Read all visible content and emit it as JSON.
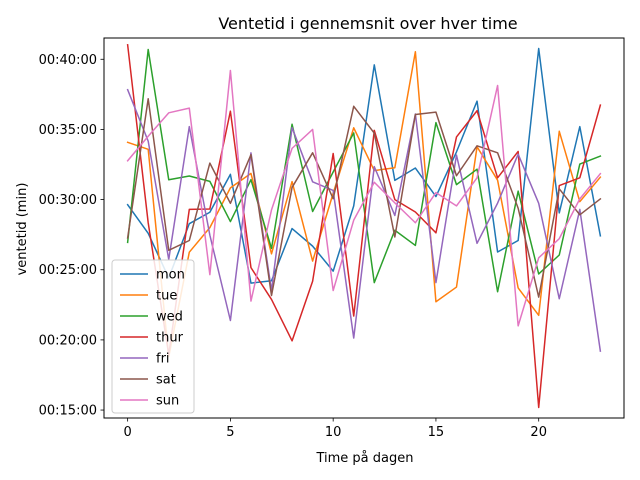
{
  "chart_data": {
    "type": "line",
    "title": "Ventetid i gennemsnit over hver time",
    "xlabel": "Time på dagen",
    "ylabel": "ventetid (min)",
    "x": [
      0,
      1,
      2,
      3,
      4,
      5,
      6,
      7,
      8,
      9,
      10,
      11,
      12,
      13,
      14,
      15,
      16,
      17,
      18,
      19,
      20,
      21,
      22,
      23
    ],
    "xlim": [
      -1.15,
      24.15
    ],
    "ylim": [
      866,
      2491
    ],
    "x_ticks": [
      0,
      5,
      10,
      15,
      20
    ],
    "x_tick_labels": [
      "0",
      "5",
      "10",
      "15",
      "20"
    ],
    "y_ticks": [
      900,
      1200,
      1500,
      1800,
      2100,
      2400
    ],
    "y_tick_labels": [
      "00:15:00",
      "00:20:00",
      "00:25:00",
      "00:30:00",
      "00:35:00",
      "00:40:00"
    ],
    "legend_position": "lower-left",
    "series": [
      {
        "name": "mon",
        "color": "#1f77b4",
        "values": [
          1778,
          1656,
          1465,
          1697,
          1746,
          1908,
          1443,
          1453,
          1676,
          1601,
          1494,
          1773,
          2376,
          1882,
          1935,
          1813,
          2004,
          2221,
          1576,
          1625,
          2446,
          1743,
          2112,
          1645
        ]
      },
      {
        "name": "tue",
        "color": "#ff7f0e",
        "values": [
          2045,
          2015,
          1128,
          1575,
          1680,
          1850,
          1912,
          1568,
          1877,
          1537,
          1827,
          2107,
          1924,
          1936,
          2432,
          1363,
          1426,
          2026,
          1883,
          1422,
          1305,
          2092,
          1791,
          1896
        ]
      },
      {
        "name": "wed",
        "color": "#2ca02c",
        "values": [
          1617,
          2442,
          1885,
          1901,
          1878,
          1706,
          1885,
          1591,
          2122,
          1749,
          1918,
          2085,
          1445,
          1669,
          1604,
          2129,
          1864,
          1930,
          1406,
          1836,
          1482,
          1563,
          1952,
          1986
        ]
      },
      {
        "name": "thur",
        "color": "#d62728",
        "values": [
          2462,
          1701,
          1137,
          1758,
          1760,
          2178,
          1509,
          1373,
          1196,
          1451,
          1997,
          1302,
          2096,
          1800,
          1747,
          1658,
          2068,
          2180,
          1893,
          2006,
          911,
          1860,
          1893,
          2204
        ]
      },
      {
        "name": "fri",
        "color": "#9467bd",
        "values": [
          2270,
          2050,
          1544,
          2112,
          1648,
          1283,
          2000,
          1411,
          2108,
          1876,
          1839,
          1208,
          1941,
          1732,
          2166,
          1445,
          1990,
          1613,
          1785,
          1994,
          1784,
          1376,
          1758,
          1152
        ]
      },
      {
        "name": "sat",
        "color": "#8c564b",
        "values": [
          1636,
          2231,
          1583,
          1625,
          1956,
          1784,
          1992,
          1390,
          1852,
          2000,
          1804,
          2199,
          2084,
          1640,
          2164,
          2174,
          1902,
          2030,
          2000,
          1763,
          1383,
          1846,
          1735,
          1803
        ]
      },
      {
        "name": "sun",
        "color": "#e377c2",
        "values": [
          1966,
          2071,
          2171,
          2191,
          1479,
          2352,
          1366,
          1756,
          2019,
          2100,
          1411,
          1712,
          1874,
          1786,
          1701,
          1830,
          1773,
          1893,
          2288,
          1260,
          1551,
          1633,
          1803,
          1911
        ]
      }
    ]
  }
}
